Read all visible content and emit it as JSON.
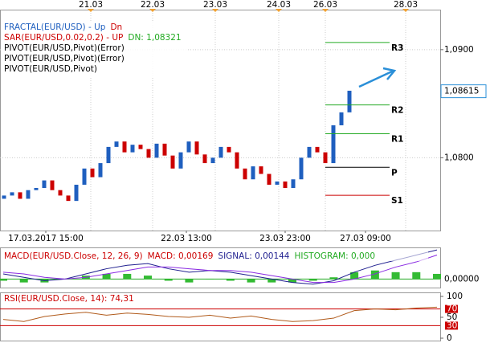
{
  "chart_data": [
    {
      "type": "candlestick",
      "legend": [
        {
          "parts": [
            "FRACTAL(EUR/USD) - Up",
            "Dn"
          ],
          "colors": [
            "#1f5fbf",
            "#cc0000"
          ]
        },
        {
          "parts": [
            "SAR(EUR/USD,0.02,0.2) - UP",
            "DN: 1,08321"
          ],
          "colors": [
            "#cc0000",
            "#22aa22"
          ]
        },
        {
          "parts": [
            "PIVOT(EUR/USD,Pivot)(Error)"
          ],
          "colors": [
            "#000000"
          ]
        },
        {
          "parts": [
            "PIVOT(EUR/USD,Pivot)(Error)"
          ],
          "colors": [
            "#000000"
          ]
        },
        {
          "parts": [
            "PIVOT(EUR/USD,Pivot)"
          ],
          "colors": [
            "#000000"
          ]
        }
      ],
      "open": [
        1.0762,
        1.0765,
        1.0768,
        1.0762,
        1.077,
        1.0772,
        1.0779,
        1.077,
        1.0765,
        1.076,
        1.0775,
        1.079,
        1.0782,
        1.0795,
        1.081,
        1.0815,
        1.0805,
        1.0812,
        1.0808,
        1.08,
        1.0813,
        1.0802,
        1.079,
        1.0805,
        1.0815,
        1.0803,
        1.0795,
        1.08,
        1.081,
        1.0805,
        1.079,
        1.078,
        1.0792,
        1.0785,
        1.0775,
        1.0778,
        1.0772,
        1.078,
        1.08,
        1.081,
        1.0805,
        1.0795,
        1.083,
        1.0842
      ],
      "close": [
        1.0765,
        1.0768,
        1.0762,
        1.077,
        1.0772,
        1.0779,
        1.077,
        1.0765,
        1.076,
        1.0775,
        1.079,
        1.0782,
        1.0795,
        1.081,
        1.0815,
        1.0805,
        1.0812,
        1.0808,
        1.08,
        1.0813,
        1.0802,
        1.079,
        1.0805,
        1.0815,
        1.0803,
        1.0795,
        1.08,
        1.081,
        1.0805,
        1.079,
        1.078,
        1.0792,
        1.0785,
        1.0775,
        1.0778,
        1.0772,
        1.078,
        1.08,
        1.081,
        1.0805,
        1.0795,
        1.083,
        1.0842,
        1.0862
      ],
      "up_color": "#1f5fbf",
      "down_color": "#cc0000",
      "xlim": [
        -0.5,
        54.3
      ],
      "top_xticks": [
        {
          "value": 10.8,
          "label": "21.03"
        },
        {
          "value": 18.5,
          "label": "22.03"
        },
        {
          "value": 26.3,
          "label": "23.03"
        },
        {
          "value": 34.2,
          "label": "24.03"
        },
        {
          "value": 40,
          "label": "26.03"
        },
        {
          "value": 50,
          "label": "28.03"
        }
      ],
      "bottom_xticks": [
        {
          "value": 5.2,
          "label": "17.03.2017 15:00"
        },
        {
          "value": 22.7,
          "label": "22.03 13:00"
        },
        {
          "value": 35,
          "label": "23.03 23:00"
        },
        {
          "value": 45,
          "label": "27.03 09:00"
        }
      ],
      "ylim": [
        1.07326,
        1.09363
      ],
      "yticks": [
        {
          "value": 1.09,
          "label": "1,0900"
        },
        {
          "value": 1.08,
          "label": "1,0800"
        }
      ],
      "last_price": {
        "value": 1.08615,
        "label": "1,08615"
      },
      "pivots": [
        {
          "name": "R3",
          "value": 1.09067,
          "color": "#22aa22"
        },
        {
          "name": "R2",
          "value": 1.08489,
          "color": "#22aa22"
        },
        {
          "name": "R1",
          "value": 1.08222,
          "color": "#22aa22"
        },
        {
          "name": "P",
          "value": 1.07911,
          "color": "#000000"
        },
        {
          "name": "S1",
          "value": 1.07652,
          "color": "#cc0000"
        }
      ],
      "pivot_span": [
        40,
        48
      ]
    },
    {
      "type": "macd",
      "legend": [
        {
          "parts": [
            "MACD(EUR/USD.Close, 12, 26, 9)",
            "MACD: 0,00169",
            "SIGNAL: 0,00144",
            "HISTOGRAM: 0,000"
          ],
          "colors": [
            "#cc0000",
            "#cc0000",
            "#1f1f8f",
            "#22aa22"
          ]
        }
      ],
      "macd": [
        0.0003,
        0.0001,
        -0.0001,
        0.0,
        0.0003,
        0.0006,
        0.0008,
        0.0009,
        0.0006,
        0.0004,
        0.0005,
        0.0004,
        0.0002,
        0.0,
        -0.0002,
        -0.0003,
        -0.0001,
        0.0004,
        0.0008,
        0.0011,
        0.0014,
        0.0017
      ],
      "signal": [
        0.0004,
        0.0003,
        0.0001,
        0.0,
        0.0001,
        0.0003,
        0.0005,
        0.0007,
        0.0007,
        0.0006,
        0.0005,
        0.0005,
        0.0004,
        0.0002,
        0.0,
        -0.0002,
        -0.0002,
        0.0,
        0.0003,
        0.0007,
        0.001,
        0.0014
      ],
      "histogram": [
        -0.0001,
        -0.0002,
        -0.0002,
        0.0,
        0.0002,
        0.0003,
        0.0003,
        0.0002,
        -0.0001,
        -0.0002,
        0.0,
        -0.0001,
        -0.0002,
        -0.0002,
        -0.0002,
        -0.0001,
        0.0001,
        0.0004,
        0.0005,
        0.0004,
        0.0004,
        0.0003
      ],
      "colors": {
        "macd": "#1f1f8f",
        "signal": "#8a2be2",
        "histogram": "#33bb33"
      },
      "ylim": [
        -0.0005,
        0.0018
      ],
      "yticks": [
        {
          "value": 0,
          "label": "0,00000"
        }
      ]
    },
    {
      "type": "rsi",
      "legend": [
        {
          "parts": [
            "RSI(EUR/USD.Close, 14): 74,31"
          ],
          "colors": [
            "#cc0000"
          ]
        }
      ],
      "values": [
        45,
        40,
        52,
        58,
        62,
        55,
        60,
        57,
        52,
        50,
        55,
        48,
        53,
        45,
        40,
        42,
        48,
        66,
        70,
        68,
        72,
        74.31
      ],
      "color": "#b05a1a",
      "ylim": [
        0,
        100
      ],
      "yticks": [
        100,
        70,
        50,
        30,
        0
      ],
      "levels": [
        70,
        30
      ]
    }
  ]
}
